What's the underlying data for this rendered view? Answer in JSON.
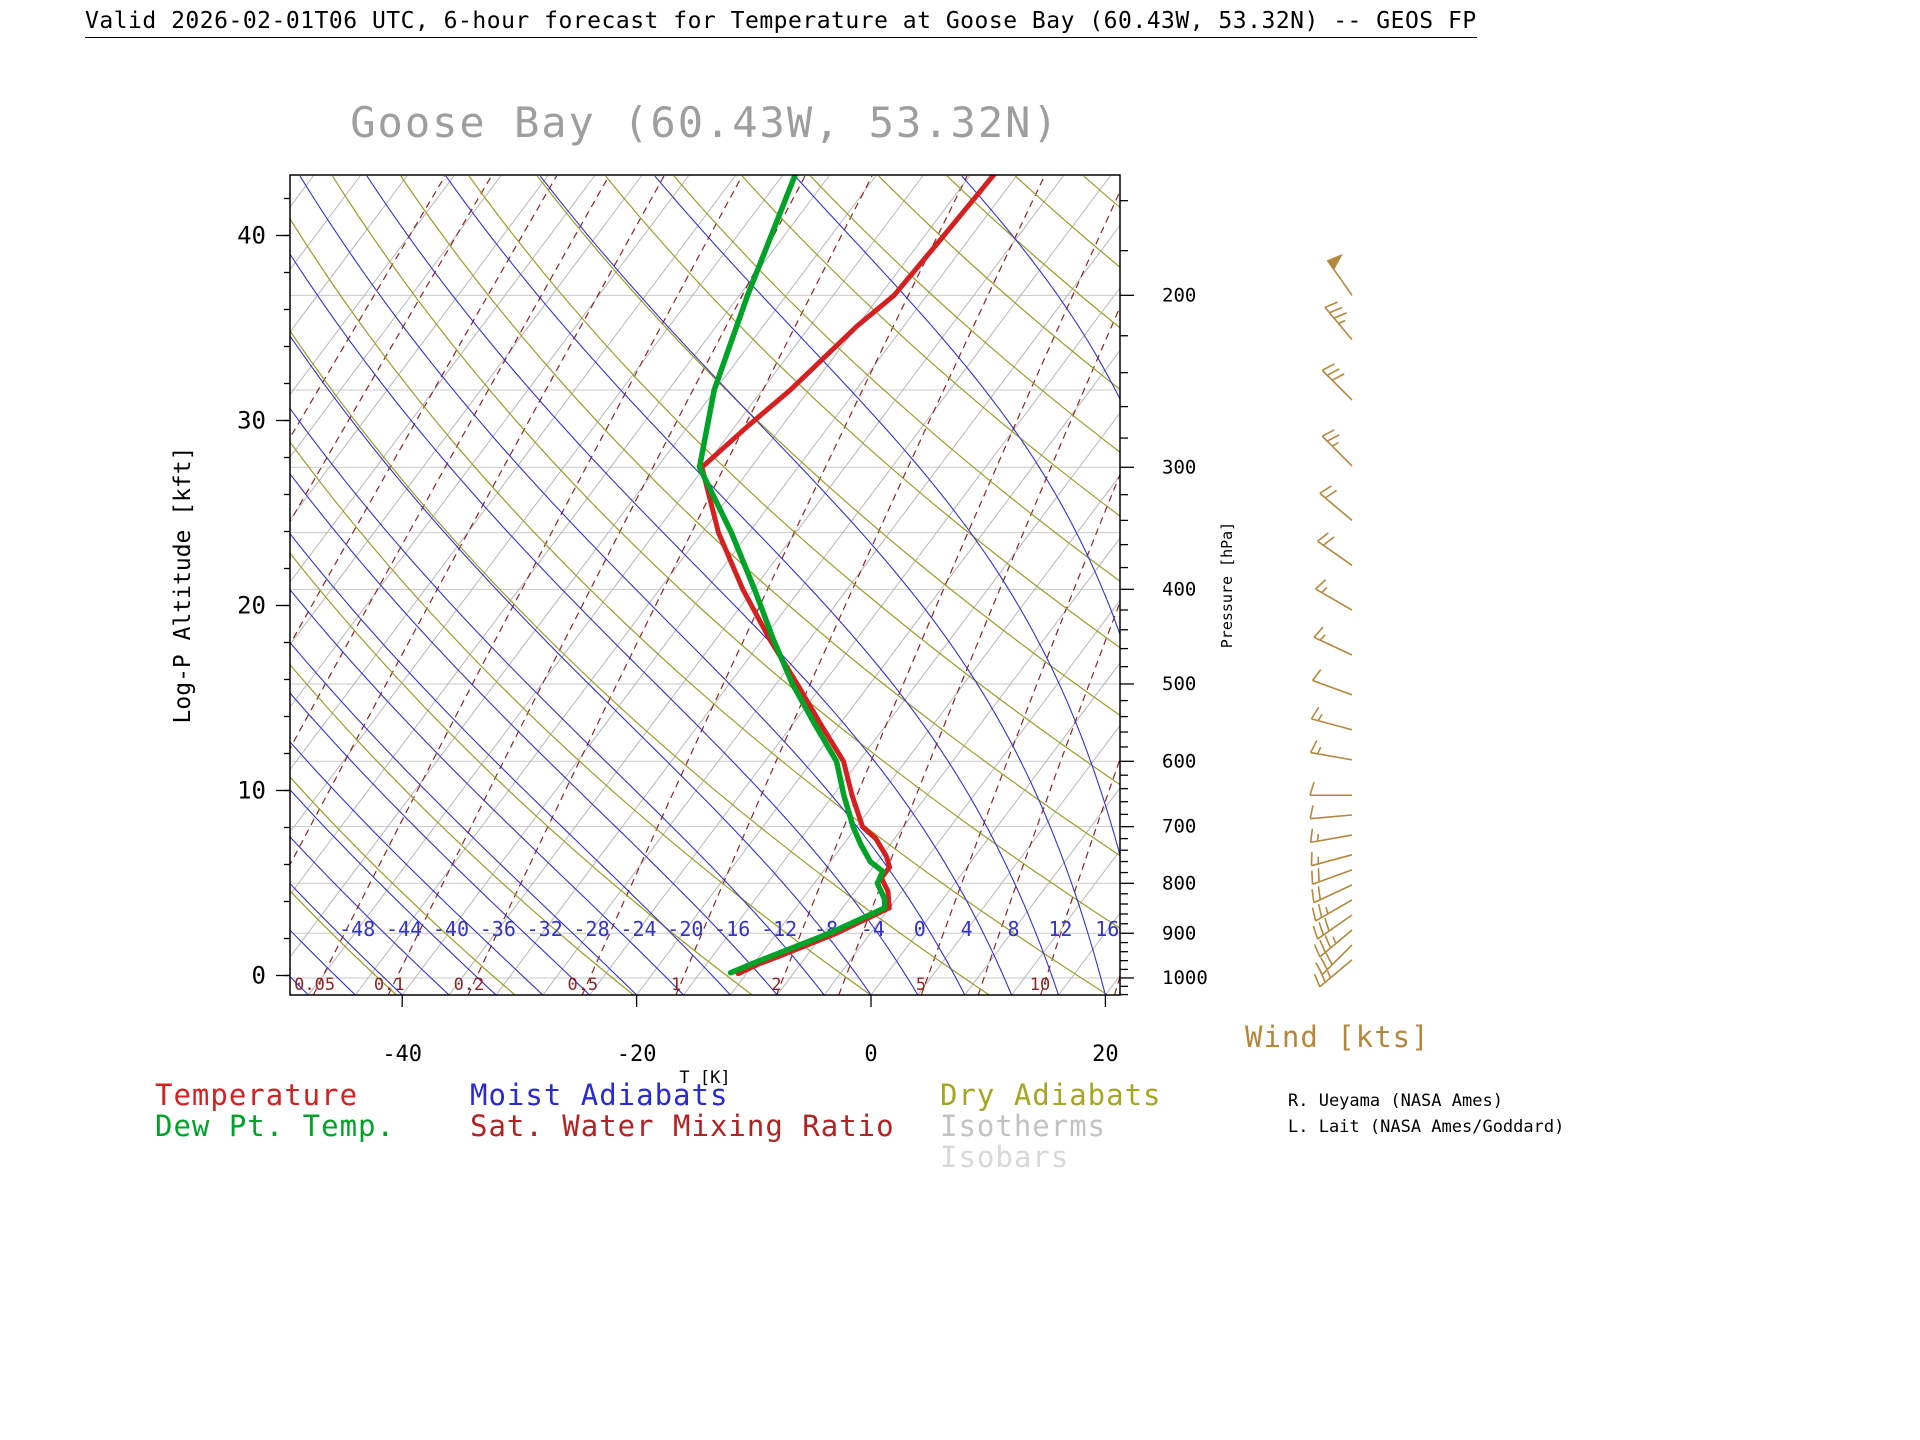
{
  "header": {
    "title": "Valid 2026-02-01T06 UTC, 6-hour forecast for Temperature at Goose Bay (60.43W, 53.32N) -- GEOS FP"
  },
  "chart_data": {
    "type": "line",
    "subtype": "skew-T log-P atmospheric sounding",
    "title": "Goose Bay (60.43W, 53.32N)",
    "title_color": "#9e9e9e",
    "x_axis": {
      "label": "T [K]",
      "ticks": [
        -40,
        -20,
        0,
        20
      ]
    },
    "left_axis": {
      "label": "Log-P Altitude [kft]",
      "ticks_kft": [
        0,
        10,
        20,
        30,
        40
      ]
    },
    "right_axis": {
      "label": "Pressure [hPa]",
      "ticks_hpa": [
        200,
        300,
        400,
        500,
        600,
        700,
        800,
        900,
        1000
      ]
    },
    "isotherm_labels_c": [
      -48,
      -44,
      -40,
      -36,
      -32,
      -28,
      -24,
      -20,
      -16,
      -12,
      -8,
      -4,
      0,
      4,
      8,
      12,
      16
    ],
    "mixing_ratio_labels_gkg": [
      "0.05",
      "0.1",
      "0.2",
      "0.5",
      "1",
      "2",
      "5",
      "10"
    ],
    "colors": {
      "isotherm": "#b7b7b7",
      "isobar": "#c9c9c9",
      "dry_adiabat": "#9c9c2a",
      "moist_adiabat": "#3333c8",
      "mixing": "#8e2323",
      "frame": "#000000"
    },
    "background": {
      "isotherms_c": {
        "min": -108,
        "max": 60,
        "step": 4
      },
      "isobars_hpa": [
        200,
        250,
        300,
        350,
        400,
        500,
        600,
        700,
        800,
        900,
        1000
      ],
      "dry_adiabats_theta_k": {
        "min": 220,
        "max": 450,
        "step": 10
      },
      "moist_adiabats_t0_c": {
        "min": -64,
        "max": 40,
        "step": 4
      },
      "mixing_ratio_lines_gkg": [
        0.001,
        0.002,
        0.005,
        0.01,
        0.02,
        0.05,
        0.1,
        0.2,
        0.5,
        1,
        2,
        3,
        5,
        7,
        10,
        15,
        20,
        30
      ]
    },
    "series": [
      {
        "name": "Temperature",
        "color": "#d42020",
        "width": 5,
        "points_p_t": [
          [
            990,
            -12.7
          ],
          [
            968,
            -11.6
          ],
          [
            950,
            -10.3
          ],
          [
            900,
            -6.9
          ],
          [
            848,
            -4.0
          ],
          [
            815,
            -5.2
          ],
          [
            790,
            -6.6
          ],
          [
            770,
            -6.6
          ],
          [
            750,
            -7.6
          ],
          [
            720,
            -9.6
          ],
          [
            700,
            -11.5
          ],
          [
            650,
            -14.4
          ],
          [
            600,
            -17.3
          ],
          [
            550,
            -21.6
          ],
          [
            500,
            -26.2
          ],
          [
            450,
            -31.4
          ],
          [
            400,
            -36.9
          ],
          [
            350,
            -42.6
          ],
          [
            300,
            -48.2
          ],
          [
            272,
            -46.9
          ],
          [
            250,
            -45.6
          ],
          [
            215,
            -44.0
          ],
          [
            200,
            -42.8
          ],
          [
            175,
            -42.4
          ],
          [
            150,
            -42.0
          ]
        ]
      },
      {
        "name": "Dew Pt. Temp.",
        "color": "#00a327",
        "width": 5.5,
        "points_p_t": [
          [
            988,
            -13.4
          ],
          [
            968,
            -12.2
          ],
          [
            950,
            -11.0
          ],
          [
            900,
            -7.5
          ],
          [
            848,
            -4.4
          ],
          [
            830,
            -5.0
          ],
          [
            800,
            -6.6
          ],
          [
            778,
            -6.9
          ],
          [
            760,
            -8.6
          ],
          [
            730,
            -10.5
          ],
          [
            700,
            -12.3
          ],
          [
            650,
            -15.1
          ],
          [
            600,
            -17.9
          ],
          [
            550,
            -22.1
          ],
          [
            500,
            -26.6
          ],
          [
            450,
            -31.1
          ],
          [
            400,
            -35.9
          ],
          [
            350,
            -41.5
          ],
          [
            300,
            -48.4
          ],
          [
            250,
            -52.1
          ],
          [
            200,
            -55.3
          ],
          [
            150,
            -59.0
          ]
        ]
      }
    ],
    "wind_barbs": {
      "units": "kts",
      "color": "#b5873c",
      "levels_p_spd_dir": [
        [
          958,
          25,
          230
        ],
        [
          925,
          30,
          225
        ],
        [
          893,
          35,
          230
        ],
        [
          862,
          30,
          235
        ],
        [
          832,
          25,
          240
        ],
        [
          803,
          20,
          245
        ],
        [
          775,
          20,
          250
        ],
        [
          748,
          15,
          255
        ],
        [
          714,
          15,
          260
        ],
        [
          681,
          10,
          265
        ],
        [
          650,
          10,
          270
        ],
        [
          598,
          15,
          280
        ],
        [
          557,
          15,
          285
        ],
        [
          513,
          10,
          290
        ],
        [
          467,
          15,
          295
        ],
        [
          420,
          15,
          300
        ],
        [
          378,
          20,
          305
        ],
        [
          340,
          20,
          310
        ],
        [
          299,
          25,
          315
        ],
        [
          256,
          30,
          315
        ],
        [
          222,
          35,
          320
        ],
        [
          200,
          50,
          325
        ]
      ]
    }
  },
  "legend": {
    "col1": [
      {
        "label": "Temperature",
        "color": "#d42020"
      },
      {
        "label": "Dew Pt. Temp.",
        "color": "#00a327"
      }
    ],
    "col2": [
      {
        "label": "Moist Adiabats",
        "color": "#2a2ad4"
      },
      {
        "label": "Sat. Water Mixing Ratio",
        "color": "#b22222"
      }
    ],
    "col3": [
      {
        "label": "Dry Adiabats",
        "color": "#a6a623"
      },
      {
        "label": "Isotherms",
        "color": "#c2c2c2"
      },
      {
        "label": "Isobars",
        "color": "#d8d8d8"
      }
    ]
  },
  "wind": {
    "label": "Wind [kts]",
    "color": "#b5873c"
  },
  "credits": {
    "line1": "R. Ueyama (NASA Ames)",
    "line2": "L. Lait (NASA Ames/Goddard)"
  }
}
